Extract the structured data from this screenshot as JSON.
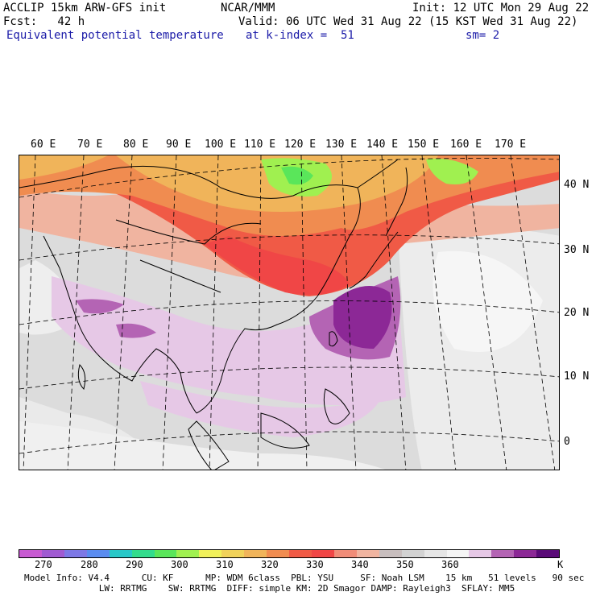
{
  "header": {
    "model_line": "ACCLIP 15km ARW-GFS init",
    "org": "NCAR/MMM",
    "init_line": "Init: 12 UTC Mon 29 Aug 22",
    "fcst_line": "Fcst:   42 h",
    "valid_line": "Valid: 06 UTC Wed 31 Aug 22 (15 KST Wed 31 Aug 22)",
    "field_name": "Equivalent potential temperature",
    "level_line": "at k-index =  51",
    "smooth_line": "sm= 2"
  },
  "map": {
    "lon_labels": [
      "60 E",
      "70 E",
      "80 E",
      "90 E",
      "100 E",
      "110 E",
      "120 E",
      "130 E",
      "140 E",
      "150 E",
      "160 E",
      "170 E"
    ],
    "lat_labels": [
      "40 N",
      "30 N",
      "20 N",
      "10 N",
      "0"
    ]
  },
  "colorbar": {
    "colors": [
      "#c85ad2",
      "#a05ad2",
      "#7d78e6",
      "#5a8cf0",
      "#28c8c8",
      "#32dc8c",
      "#5ae65a",
      "#a0f050",
      "#f0f05a",
      "#f0d25a",
      "#f0b45a",
      "#f08c50",
      "#f05a46",
      "#f04646",
      "#f08c78",
      "#f0b4a0",
      "#c8bebe",
      "#d2d2d2",
      "#e6e6e6",
      "#f5f5f5",
      "#e6c8e6",
      "#b464b4",
      "#8c2896",
      "#5a0a78"
    ],
    "tick_labels": [
      "270",
      "280",
      "290",
      "300",
      "310",
      "320",
      "330",
      "340",
      "350",
      "360"
    ],
    "unit": "K"
  },
  "footer": {
    "line1": "Model Info: V4.4      CU: KF      MP: WDM 6class  PBL: YSU     SF: Noah LSM    15 km   51 levels   90 sec",
    "line2": "              LW: RRTMG    SW: RRTMG  DIFF: simple KM: 2D Smagor DAMP: Rayleigh3  SFLAY: MM5"
  }
}
